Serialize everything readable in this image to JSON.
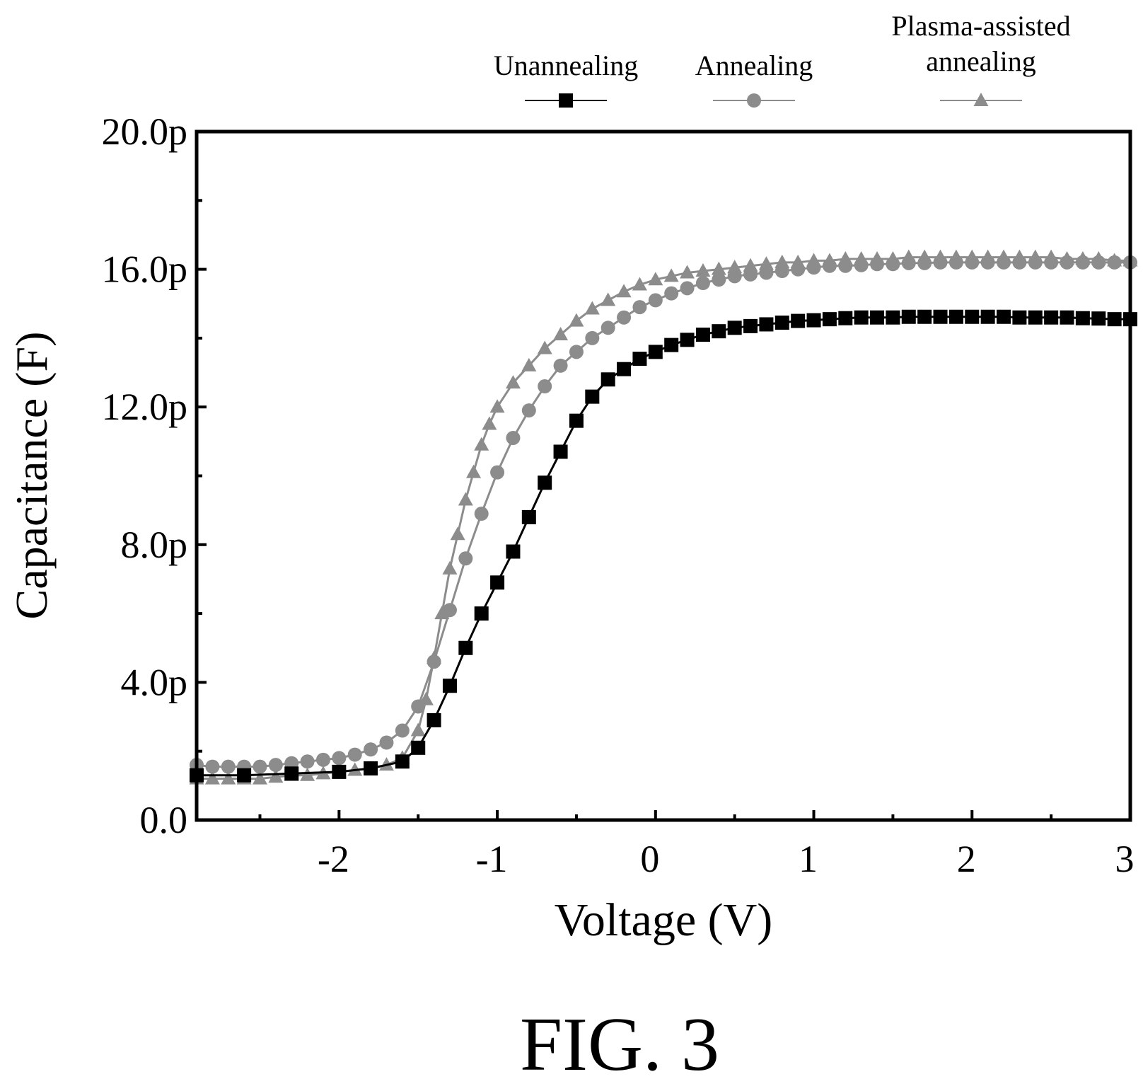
{
  "figure_label": "FIG. 3",
  "chart_data": {
    "type": "scatter",
    "xlabel": "Voltage (V)",
    "ylabel": "Capacitance (F)",
    "xlim": [
      -2.9,
      3.0
    ],
    "ylim": [
      0,
      20
    ],
    "x_ticks": [
      {
        "value": -2,
        "label": "-2"
      },
      {
        "value": -1,
        "label": "-1"
      },
      {
        "value": 0,
        "label": "0"
      },
      {
        "value": 1,
        "label": "1"
      },
      {
        "value": 2,
        "label": "2"
      },
      {
        "value": 3,
        "label": "3"
      }
    ],
    "y_ticks": [
      {
        "value": 0,
        "label": "0.0"
      },
      {
        "value": 4,
        "label": "4.0p"
      },
      {
        "value": 8,
        "label": "8.0p"
      },
      {
        "value": 12,
        "label": "12.0p"
      },
      {
        "value": 16,
        "label": "16.0p"
      },
      {
        "value": 20,
        "label": "20.0p"
      }
    ],
    "grid": false,
    "legend_position": "top",
    "series": [
      {
        "name": "Unannealing",
        "marker": "square",
        "color": "#000000",
        "points": [
          [
            -2.9,
            1.3
          ],
          [
            -2.6,
            1.3
          ],
          [
            -2.3,
            1.35
          ],
          [
            -2.0,
            1.4
          ],
          [
            -1.8,
            1.5
          ],
          [
            -1.6,
            1.7
          ],
          [
            -1.5,
            2.1
          ],
          [
            -1.4,
            2.9
          ],
          [
            -1.3,
            3.9
          ],
          [
            -1.2,
            5.0
          ],
          [
            -1.1,
            6.0
          ],
          [
            -1.0,
            6.9
          ],
          [
            -0.9,
            7.8
          ],
          [
            -0.8,
            8.8
          ],
          [
            -0.7,
            9.8
          ],
          [
            -0.6,
            10.7
          ],
          [
            -0.5,
            11.6
          ],
          [
            -0.4,
            12.3
          ],
          [
            -0.3,
            12.8
          ],
          [
            -0.2,
            13.1
          ],
          [
            -0.1,
            13.4
          ],
          [
            0.0,
            13.6
          ],
          [
            0.1,
            13.8
          ],
          [
            0.2,
            13.95
          ],
          [
            0.3,
            14.1
          ],
          [
            0.4,
            14.2
          ],
          [
            0.5,
            14.3
          ],
          [
            0.6,
            14.35
          ],
          [
            0.7,
            14.4
          ],
          [
            0.8,
            14.45
          ],
          [
            0.9,
            14.5
          ],
          [
            1.0,
            14.52
          ],
          [
            1.1,
            14.55
          ],
          [
            1.2,
            14.58
          ],
          [
            1.3,
            14.6
          ],
          [
            1.4,
            14.6
          ],
          [
            1.5,
            14.6
          ],
          [
            1.6,
            14.62
          ],
          [
            1.7,
            14.62
          ],
          [
            1.8,
            14.62
          ],
          [
            1.9,
            14.62
          ],
          [
            2.0,
            14.62
          ],
          [
            2.1,
            14.62
          ],
          [
            2.2,
            14.62
          ],
          [
            2.3,
            14.6
          ],
          [
            2.4,
            14.6
          ],
          [
            2.5,
            14.6
          ],
          [
            2.6,
            14.6
          ],
          [
            2.7,
            14.58
          ],
          [
            2.8,
            14.57
          ],
          [
            2.9,
            14.55
          ],
          [
            3.0,
            14.55
          ]
        ]
      },
      {
        "name": "Annealing",
        "marker": "circle",
        "color": "#8c8c8c",
        "points": [
          [
            -2.9,
            1.6
          ],
          [
            -2.8,
            1.55
          ],
          [
            -2.7,
            1.55
          ],
          [
            -2.6,
            1.55
          ],
          [
            -2.5,
            1.55
          ],
          [
            -2.4,
            1.6
          ],
          [
            -2.3,
            1.65
          ],
          [
            -2.2,
            1.7
          ],
          [
            -2.1,
            1.75
          ],
          [
            -2.0,
            1.8
          ],
          [
            -1.9,
            1.9
          ],
          [
            -1.8,
            2.05
          ],
          [
            -1.7,
            2.25
          ],
          [
            -1.6,
            2.6
          ],
          [
            -1.5,
            3.3
          ],
          [
            -1.4,
            4.6
          ],
          [
            -1.3,
            6.1
          ],
          [
            -1.2,
            7.6
          ],
          [
            -1.1,
            8.9
          ],
          [
            -1.0,
            10.1
          ],
          [
            -0.9,
            11.1
          ],
          [
            -0.8,
            11.9
          ],
          [
            -0.7,
            12.6
          ],
          [
            -0.6,
            13.2
          ],
          [
            -0.5,
            13.6
          ],
          [
            -0.4,
            14.0
          ],
          [
            -0.3,
            14.3
          ],
          [
            -0.2,
            14.6
          ],
          [
            -0.1,
            14.9
          ],
          [
            0.0,
            15.1
          ],
          [
            0.1,
            15.3
          ],
          [
            0.2,
            15.45
          ],
          [
            0.3,
            15.6
          ],
          [
            0.4,
            15.7
          ],
          [
            0.5,
            15.8
          ],
          [
            0.6,
            15.85
          ],
          [
            0.7,
            15.9
          ],
          [
            0.8,
            15.95
          ],
          [
            0.9,
            16.0
          ],
          [
            1.0,
            16.05
          ],
          [
            1.1,
            16.1
          ],
          [
            1.2,
            16.1
          ],
          [
            1.3,
            16.12
          ],
          [
            1.4,
            16.15
          ],
          [
            1.5,
            16.15
          ],
          [
            1.6,
            16.18
          ],
          [
            1.7,
            16.18
          ],
          [
            1.8,
            16.2
          ],
          [
            1.9,
            16.2
          ],
          [
            2.0,
            16.2
          ],
          [
            2.1,
            16.2
          ],
          [
            2.2,
            16.2
          ],
          [
            2.3,
            16.2
          ],
          [
            2.4,
            16.2
          ],
          [
            2.5,
            16.2
          ],
          [
            2.6,
            16.2
          ],
          [
            2.7,
            16.2
          ],
          [
            2.8,
            16.2
          ],
          [
            2.9,
            16.2
          ],
          [
            3.0,
            16.2
          ]
        ]
      },
      {
        "name": "Plasma-assisted annealing",
        "marker": "triangle",
        "color": "#8c8c8c",
        "points": [
          [
            -2.9,
            1.2
          ],
          [
            -2.8,
            1.2
          ],
          [
            -2.7,
            1.2
          ],
          [
            -2.6,
            1.2
          ],
          [
            -2.5,
            1.2
          ],
          [
            -2.4,
            1.25
          ],
          [
            -2.3,
            1.3
          ],
          [
            -2.2,
            1.3
          ],
          [
            -2.1,
            1.35
          ],
          [
            -2.0,
            1.4
          ],
          [
            -1.9,
            1.45
          ],
          [
            -1.8,
            1.5
          ],
          [
            -1.7,
            1.6
          ],
          [
            -1.6,
            1.8
          ],
          [
            -1.5,
            2.6
          ],
          [
            -1.45,
            3.5
          ],
          [
            -1.4,
            4.7
          ],
          [
            -1.35,
            6.0
          ],
          [
            -1.3,
            7.3
          ],
          [
            -1.25,
            8.3
          ],
          [
            -1.2,
            9.3
          ],
          [
            -1.15,
            10.1
          ],
          [
            -1.1,
            10.9
          ],
          [
            -1.05,
            11.5
          ],
          [
            -1.0,
            12.0
          ],
          [
            -0.9,
            12.7
          ],
          [
            -0.8,
            13.2
          ],
          [
            -0.7,
            13.7
          ],
          [
            -0.6,
            14.1
          ],
          [
            -0.5,
            14.5
          ],
          [
            -0.4,
            14.85
          ],
          [
            -0.3,
            15.1
          ],
          [
            -0.2,
            15.35
          ],
          [
            -0.1,
            15.55
          ],
          [
            0.0,
            15.7
          ],
          [
            0.1,
            15.8
          ],
          [
            0.2,
            15.9
          ],
          [
            0.3,
            15.95
          ],
          [
            0.4,
            16.0
          ],
          [
            0.5,
            16.05
          ],
          [
            0.6,
            16.1
          ],
          [
            0.7,
            16.15
          ],
          [
            0.8,
            16.2
          ],
          [
            0.9,
            16.2
          ],
          [
            1.0,
            16.25
          ],
          [
            1.1,
            16.25
          ],
          [
            1.2,
            16.3
          ],
          [
            1.3,
            16.3
          ],
          [
            1.4,
            16.3
          ],
          [
            1.5,
            16.3
          ],
          [
            1.6,
            16.35
          ],
          [
            1.7,
            16.35
          ],
          [
            1.8,
            16.35
          ],
          [
            1.9,
            16.35
          ],
          [
            2.0,
            16.35
          ],
          [
            2.1,
            16.35
          ],
          [
            2.2,
            16.35
          ],
          [
            2.3,
            16.35
          ],
          [
            2.4,
            16.35
          ],
          [
            2.5,
            16.35
          ],
          [
            2.6,
            16.3
          ],
          [
            2.7,
            16.3
          ],
          [
            2.8,
            16.3
          ],
          [
            2.9,
            16.25
          ],
          [
            3.0,
            16.25
          ]
        ]
      }
    ]
  }
}
